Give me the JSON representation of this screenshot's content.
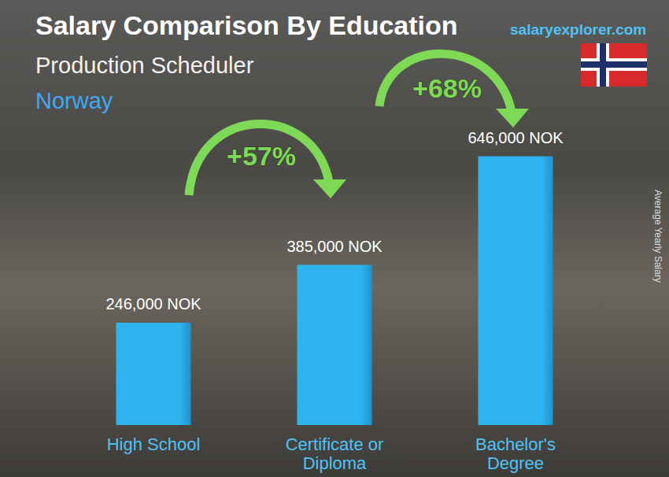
{
  "chart_data": {
    "type": "bar",
    "title": "Salary Comparison By Education",
    "subtitle": "Production Scheduler",
    "location": "Norway",
    "source": "salaryexplorer.com",
    "ylabel": "Average Yearly Salary",
    "categories": [
      "High School",
      "Certificate or\nDiploma",
      "Bachelor's\nDegree"
    ],
    "values": [
      246000,
      385000,
      646000
    ],
    "value_labels": [
      "246,000 NOK",
      "385,000 NOK",
      "646,000 NOK"
    ],
    "annotations": [
      "+57%",
      "+68%"
    ],
    "color": "#2fb3ef",
    "ylim": [
      0,
      700000
    ],
    "grid": false,
    "data_labels": true,
    "tick_labels": "x"
  }
}
